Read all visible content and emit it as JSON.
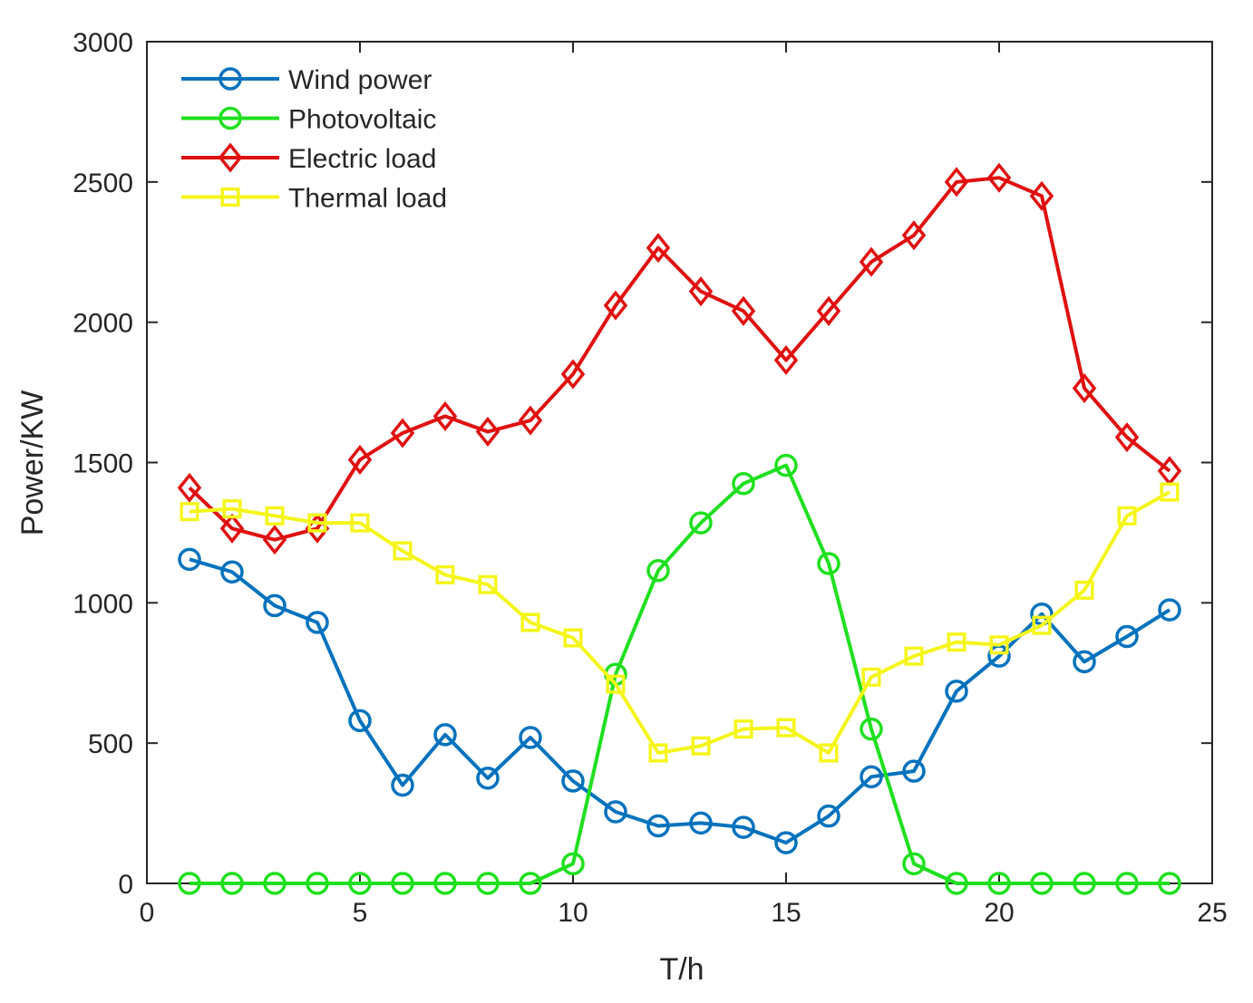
{
  "chart_data": {
    "type": "line",
    "title": "",
    "xlabel": "T/h",
    "ylabel": "Power/KW",
    "xlim": [
      0,
      25
    ],
    "ylim": [
      0,
      3000
    ],
    "xticks": [
      0,
      5,
      10,
      15,
      20,
      25
    ],
    "yticks": [
      0,
      500,
      1000,
      1500,
      2000,
      2500,
      3000
    ],
    "xtick_labels": [
      "0",
      "5",
      "10",
      "15",
      "20",
      "25"
    ],
    "ytick_labels": [
      "0",
      "500",
      "1000",
      "1500",
      "2000",
      "2500",
      "3000"
    ],
    "grid": false,
    "legend_position": "top-left",
    "x": [
      1,
      2,
      3,
      4,
      5,
      6,
      7,
      8,
      9,
      10,
      11,
      12,
      13,
      14,
      15,
      16,
      17,
      18,
      19,
      20,
      21,
      22,
      23,
      24
    ],
    "series": [
      {
        "name": "Wind power",
        "color": "#0072BD",
        "marker": "circle",
        "values": [
          1155,
          1110,
          990,
          930,
          580,
          350,
          530,
          375,
          520,
          365,
          255,
          205,
          215,
          200,
          145,
          240,
          380,
          400,
          685,
          810,
          960,
          790,
          880,
          975
        ]
      },
      {
        "name": "Photovoltaic",
        "color": "#1FE01F",
        "marker": "circle",
        "values": [
          0,
          0,
          0,
          0,
          0,
          0,
          0,
          0,
          0,
          70,
          745,
          1115,
          1285,
          1425,
          1490,
          1140,
          550,
          70,
          0,
          0,
          0,
          0,
          0,
          0
        ]
      },
      {
        "name": "Electric load",
        "color": "#E01010",
        "marker": "diamond",
        "values": [
          1410,
          1265,
          1225,
          1265,
          1510,
          1605,
          1665,
          1610,
          1650,
          1815,
          2060,
          2265,
          2110,
          2040,
          1865,
          2040,
          2215,
          2310,
          2500,
          2515,
          2450,
          1765,
          1590,
          1470
        ]
      },
      {
        "name": "Thermal load",
        "color": "#F5F51A",
        "marker": "square",
        "values": [
          1325,
          1335,
          1310,
          1285,
          1285,
          1185,
          1100,
          1065,
          930,
          875,
          710,
          465,
          490,
          550,
          555,
          465,
          735,
          810,
          860,
          850,
          920,
          1045,
          1310,
          1395
        ]
      }
    ]
  }
}
